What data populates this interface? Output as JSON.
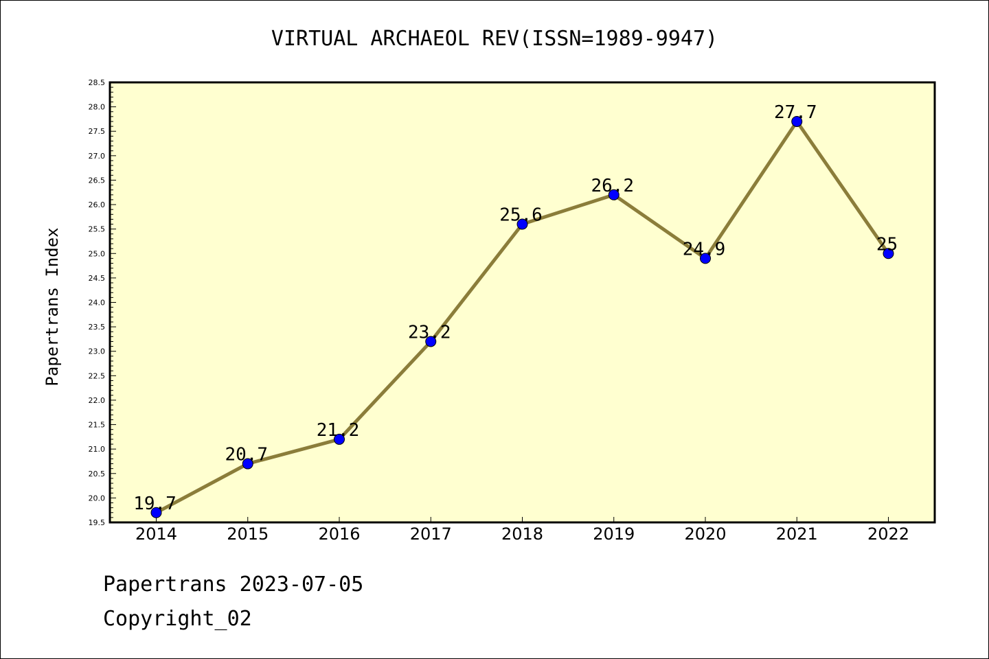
{
  "chart_data": {
    "type": "line",
    "title": "VIRTUAL ARCHAEOL REV(ISSN=1989-9947)",
    "xlabel": "",
    "ylabel": "Papertrans Index",
    "categories": [
      "2014",
      "2015",
      "2016",
      "2017",
      "2018",
      "2019",
      "2020",
      "2021",
      "2022"
    ],
    "series": [
      {
        "values": [
          19.7,
          20.7,
          21.2,
          23.2,
          25.6,
          26.2,
          24.9,
          27.7,
          25
        ],
        "labels": [
          "19.7",
          "20.7",
          "21.2",
          "23.2",
          "25.6",
          "26.2",
          "24.9",
          "27.7",
          "25"
        ]
      }
    ],
    "ylim": [
      19.5,
      28.5
    ],
    "yticks": [
      "19.5",
      "20.0",
      "20.5",
      "21.0",
      "21.5",
      "22.0",
      "22.5",
      "23.0",
      "23.5",
      "24.0",
      "24.5",
      "25.0",
      "25.5",
      "26.0",
      "26.5",
      "27.0",
      "27.5",
      "28.0",
      "28.5"
    ],
    "grid": false,
    "colors": {
      "plot_background": "#ffffd0",
      "line": "#8b7d3a",
      "marker": "#0000ff"
    }
  },
  "footer": {
    "line1": "Papertrans 2023-07-05",
    "line2": "Copyright_02"
  }
}
